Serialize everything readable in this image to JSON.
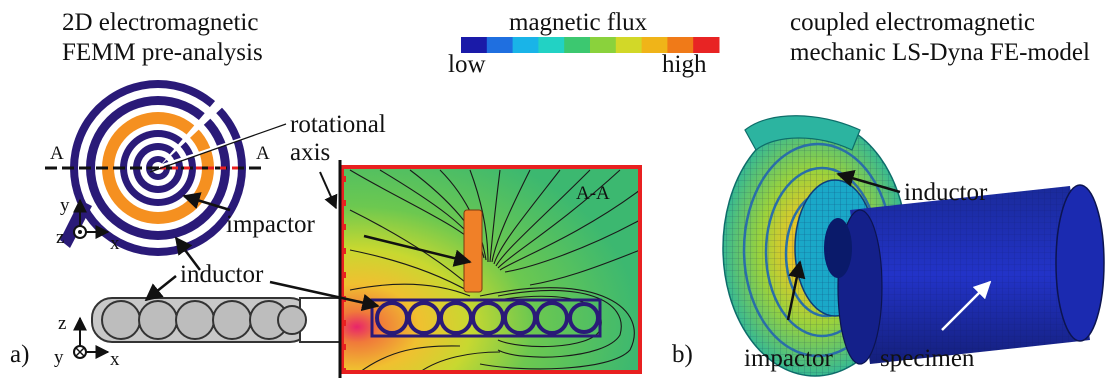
{
  "left_panel": {
    "title_line1": "2D electromagnetic",
    "title_line2": "FEMM pre-analysis",
    "section_marker": "A",
    "section_view_label": "A-A",
    "rotational_axis_line1": "rotational",
    "rotational_axis_line2": "axis",
    "impactor_label": "impactor",
    "inductor_label": "inductor",
    "axis_y": "y",
    "axis_z": "z",
    "axis_x": "x",
    "panel_label": "a)"
  },
  "colorbar": {
    "title": "magnetic flux",
    "low_label": "low",
    "high_label": "high",
    "colors": [
      "#1a1aa8",
      "#1f6fe0",
      "#19b4e8",
      "#22d2c4",
      "#3cc870",
      "#8ad23c",
      "#d2d828",
      "#f0b418",
      "#f07a18",
      "#e82424"
    ]
  },
  "right_panel": {
    "title_line1": "coupled electromagnetic",
    "title_line2": "mechanic LS-Dyna FE-model",
    "inductor_label": "inductor",
    "impactor_label": "impactor",
    "specimen_label": "specimen",
    "panel_label": "b)"
  }
}
